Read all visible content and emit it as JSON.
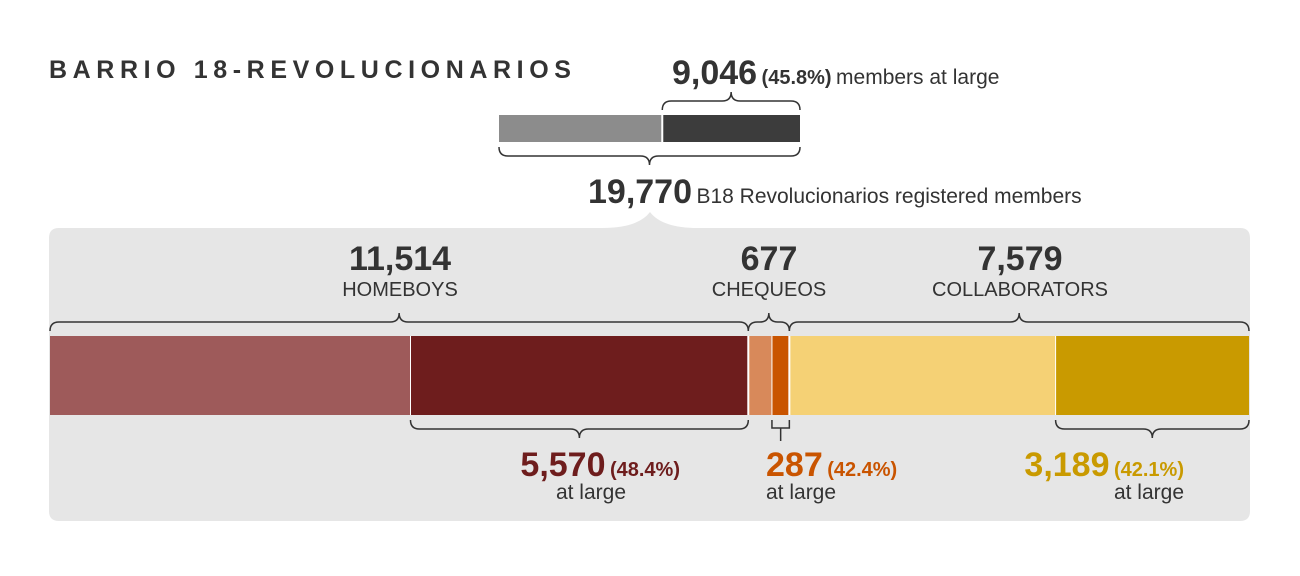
{
  "title": "BARRIO 18-REVOLUCIONARIOS",
  "colors": {
    "background_panel": "#e6e6e6",
    "total_in_custody": "#8c8c8c",
    "total_at_large": "#3c3c3c",
    "homeboys_in_custody": "#9e5a5a",
    "homeboys_at_large": "#6e1d1d",
    "chequeos_in_custody": "#d8895a",
    "chequeos_at_large": "#c95400",
    "collaborators_in_custody": "#f5d175",
    "collaborators_at_large": "#c99a00"
  },
  "summary": {
    "at_large_count": "9,046",
    "at_large_pct": "(45.8%)",
    "at_large_text": "members at large",
    "total_count": "19,770",
    "total_text": "B18 Revolucionarios registered members"
  },
  "groups": [
    {
      "count": "11,514",
      "label": "HOMEBOYS",
      "at_large_count": "5,570",
      "at_large_pct": "(48.4%)",
      "at_large_text": "at large"
    },
    {
      "count": "677",
      "label": "CHEQUEOS",
      "at_large_count": "287",
      "at_large_pct": "(42.4%)",
      "at_large_text": "at large"
    },
    {
      "count": "7,579",
      "label": "COLLABORATORS",
      "at_large_count": "3,189",
      "at_large_pct": "(42.1%)",
      "at_large_text": "at large"
    }
  ],
  "chart_data": {
    "type": "bar",
    "title": "BARRIO 18-REVOLUCIONARIOS",
    "total": 19770,
    "total_at_large": 9046,
    "total_at_large_pct": 45.8,
    "series": [
      {
        "name": "HOMEBOYS",
        "total": 11514,
        "at_large": 5570,
        "at_large_pct": 48.4
      },
      {
        "name": "CHEQUEOS",
        "total": 677,
        "at_large": 287,
        "at_large_pct": 42.4
      },
      {
        "name": "COLLABORATORS",
        "total": 7579,
        "at_large": 3189,
        "at_large_pct": 42.1
      }
    ]
  }
}
